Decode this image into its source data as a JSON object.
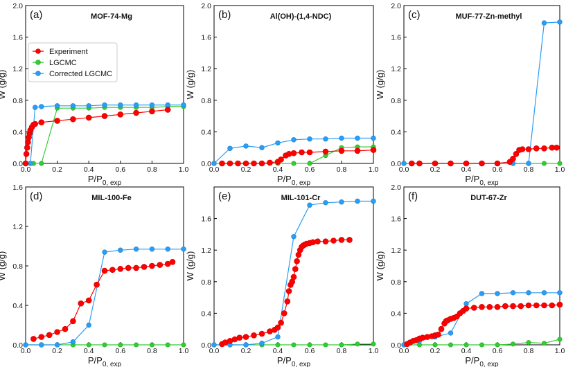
{
  "figure": {
    "type": "multi-panel isotherm figure"
  },
  "colors": {
    "experiment": "#ff0000",
    "lgcmc": "#33cc33",
    "corrected": "#2a9df4",
    "experiment_stroke": "#cc0000",
    "lgcmc_stroke": "#22aa22",
    "corrected_stroke": "#1a7fd0"
  },
  "chart_data": [
    {
      "panel": "(a)",
      "type": "line",
      "title": "MOF-74-Mg",
      "xlabel": "P/P",
      "xlabel_sub": "0, exp",
      "ylabel": "W (g/g)",
      "xlim": [
        0,
        1.0
      ],
      "ylim": [
        0,
        2.0
      ],
      "xticks": [
        "0.0",
        "0.2",
        "0.4",
        "0.6",
        "0.8",
        "1.0"
      ],
      "yticks": [
        "0.0",
        "0.4",
        "0.8",
        "1.2",
        "1.6",
        "2.0"
      ],
      "legend": [
        "Experiment",
        "LGCMC",
        "Corrected LGCMC"
      ],
      "series": [
        {
          "name": "Experiment",
          "x": [
            0.0,
            0.005,
            0.01,
            0.015,
            0.02,
            0.025,
            0.03,
            0.04,
            0.05,
            0.06,
            0.1,
            0.2,
            0.3,
            0.4,
            0.5,
            0.6,
            0.7,
            0.8,
            0.9
          ],
          "y": [
            0.0,
            0.12,
            0.2,
            0.27,
            0.33,
            0.38,
            0.42,
            0.46,
            0.49,
            0.5,
            0.52,
            0.54,
            0.56,
            0.58,
            0.6,
            0.62,
            0.64,
            0.66,
            0.68
          ]
        },
        {
          "name": "LGCMC",
          "x": [
            0.0,
            0.05,
            0.1,
            0.2,
            0.3,
            0.4,
            0.5,
            0.6,
            0.7,
            0.8,
            0.9,
            1.0
          ],
          "y": [
            0.0,
            0.0,
            0.0,
            0.7,
            0.7,
            0.7,
            0.71,
            0.71,
            0.71,
            0.71,
            0.72,
            0.72
          ]
        },
        {
          "name": "Corrected LGCMC",
          "x": [
            0.0,
            0.03,
            0.06,
            0.1,
            0.2,
            0.3,
            0.4,
            0.5,
            0.6,
            0.7,
            0.8,
            0.9,
            1.0
          ],
          "y": [
            0.0,
            0.0,
            0.71,
            0.72,
            0.73,
            0.73,
            0.73,
            0.74,
            0.74,
            0.74,
            0.74,
            0.74,
            0.74
          ]
        }
      ]
    },
    {
      "panel": "(b)",
      "type": "line",
      "title": "Al(OH)-(1,4-NDC)",
      "xlabel": "P/P",
      "xlabel_sub": "0, exp",
      "ylabel": "W (g/g)",
      "xlim": [
        0,
        1.0
      ],
      "ylim": [
        0,
        2.0
      ],
      "xticks": [
        "0.0",
        "0.2",
        "0.4",
        "0.6",
        "0.8",
        "1.0"
      ],
      "yticks": [
        "0.0",
        "0.4",
        "0.8",
        "1.2",
        "1.6",
        "2.0"
      ],
      "series": [
        {
          "name": "Experiment",
          "x": [
            0.05,
            0.1,
            0.15,
            0.2,
            0.25,
            0.3,
            0.35,
            0.4,
            0.42,
            0.45,
            0.47,
            0.5,
            0.55,
            0.6,
            0.7,
            0.8,
            0.9,
            1.0
          ],
          "y": [
            0.0,
            0.0,
            0.0,
            0.0,
            0.0,
            0.0,
            0.01,
            0.02,
            0.05,
            0.1,
            0.12,
            0.13,
            0.14,
            0.14,
            0.15,
            0.16,
            0.16,
            0.17
          ]
        },
        {
          "name": "LGCMC",
          "x": [
            0.0,
            0.1,
            0.2,
            0.3,
            0.4,
            0.5,
            0.6,
            0.7,
            0.8,
            0.9,
            1.0
          ],
          "y": [
            0.0,
            0.0,
            0.0,
            0.0,
            0.0,
            0.0,
            0.0,
            0.1,
            0.2,
            0.21,
            0.21
          ]
        },
        {
          "name": "Corrected LGCMC",
          "x": [
            0.0,
            0.1,
            0.2,
            0.3,
            0.4,
            0.5,
            0.6,
            0.7,
            0.8,
            0.9,
            1.0
          ],
          "y": [
            0.0,
            0.19,
            0.22,
            0.2,
            0.26,
            0.3,
            0.31,
            0.31,
            0.32,
            0.32,
            0.32
          ]
        }
      ]
    },
    {
      "panel": "(c)",
      "type": "line",
      "title": "MUF-77-Zn-methyl",
      "xlabel": "P/P",
      "xlabel_sub": "0, exp",
      "ylabel": "W (g/g)",
      "xlim": [
        0,
        1.0
      ],
      "ylim": [
        0,
        2.0
      ],
      "xticks": [
        "0.0",
        "0.2",
        "0.4",
        "0.6",
        "0.8",
        "1.0"
      ],
      "yticks": [
        "0.0",
        "0.4",
        "0.8",
        "1.2",
        "1.6",
        "2.0"
      ],
      "series": [
        {
          "name": "Experiment",
          "x": [
            0.05,
            0.1,
            0.2,
            0.3,
            0.4,
            0.5,
            0.6,
            0.68,
            0.7,
            0.72,
            0.74,
            0.76,
            0.8,
            0.85,
            0.9,
            0.95,
            0.98
          ],
          "y": [
            0.0,
            0.0,
            0.0,
            0.0,
            0.0,
            0.0,
            0.0,
            0.02,
            0.06,
            0.12,
            0.17,
            0.18,
            0.18,
            0.19,
            0.19,
            0.2,
            0.2
          ]
        },
        {
          "name": "LGCMC",
          "x": [
            0.0,
            0.1,
            0.2,
            0.3,
            0.4,
            0.5,
            0.6,
            0.7,
            0.8,
            0.9,
            1.0
          ],
          "y": [
            0.0,
            0.0,
            0.0,
            0.0,
            0.0,
            0.0,
            0.0,
            0.0,
            0.0,
            0.0,
            0.0
          ]
        },
        {
          "name": "Corrected LGCMC",
          "x": [
            0.0,
            0.1,
            0.2,
            0.3,
            0.4,
            0.5,
            0.6,
            0.7,
            0.8,
            0.9,
            1.0
          ],
          "y": [
            0.0,
            0.0,
            0.0,
            0.0,
            0.0,
            0.0,
            0.0,
            0.0,
            0.0,
            1.78,
            1.79
          ]
        }
      ]
    },
    {
      "panel": "(d)",
      "type": "line",
      "title": "MIL-100-Fe",
      "xlabel": "P/P",
      "xlabel_sub": "0, exp",
      "ylabel": "W (g/g)",
      "xlim": [
        0,
        1.0
      ],
      "ylim": [
        0,
        1.6
      ],
      "xticks": [
        "0.0",
        "0.2",
        "0.4",
        "0.6",
        "0.8",
        "1.0"
      ],
      "yticks": [
        "0.0",
        "0.4",
        "0.8",
        "1.2",
        "1.6"
      ],
      "series": [
        {
          "name": "Experiment",
          "x": [
            0.05,
            0.1,
            0.15,
            0.2,
            0.25,
            0.3,
            0.35,
            0.4,
            0.45,
            0.5,
            0.55,
            0.6,
            0.65,
            0.7,
            0.75,
            0.8,
            0.85,
            0.9,
            0.93
          ],
          "y": [
            0.06,
            0.08,
            0.1,
            0.13,
            0.16,
            0.24,
            0.42,
            0.45,
            0.61,
            0.75,
            0.76,
            0.77,
            0.78,
            0.78,
            0.79,
            0.8,
            0.81,
            0.82,
            0.84
          ]
        },
        {
          "name": "LGCMC",
          "x": [
            0.0,
            0.1,
            0.2,
            0.3,
            0.4,
            0.5,
            0.6,
            0.7,
            0.8,
            0.9,
            1.0
          ],
          "y": [
            0.0,
            0.0,
            0.0,
            0.0,
            0.0,
            0.0,
            0.0,
            0.0,
            0.0,
            0.0,
            0.0
          ]
        },
        {
          "name": "Corrected LGCMC",
          "x": [
            0.0,
            0.1,
            0.2,
            0.3,
            0.4,
            0.5,
            0.6,
            0.7,
            0.8,
            0.9,
            1.0
          ],
          "y": [
            0.0,
            0.0,
            0.0,
            0.03,
            0.2,
            0.94,
            0.96,
            0.97,
            0.97,
            0.97,
            0.97
          ]
        }
      ]
    },
    {
      "panel": "(e)",
      "type": "line",
      "title": "MIL-101-Cr",
      "xlabel": "P/P",
      "xlabel_sub": "0, exp",
      "ylabel": "W (g/g)",
      "xlim": [
        0,
        1.0
      ],
      "ylim": [
        0,
        2.0
      ],
      "xticks": [
        "0.0",
        "0.2",
        "0.4",
        "0.6",
        "0.8",
        "1.0"
      ],
      "yticks": [
        "0.0",
        "0.4",
        "0.8",
        "1.2",
        "1.6"
      ],
      "series": [
        {
          "name": "Experiment",
          "x": [
            0.05,
            0.07,
            0.1,
            0.13,
            0.16,
            0.2,
            0.25,
            0.3,
            0.35,
            0.38,
            0.4,
            0.42,
            0.44,
            0.46,
            0.47,
            0.48,
            0.49,
            0.5,
            0.51,
            0.52,
            0.53,
            0.54,
            0.55,
            0.56,
            0.57,
            0.58,
            0.6,
            0.62,
            0.65,
            0.7,
            0.75,
            0.8,
            0.85
          ],
          "y": [
            0.01,
            0.03,
            0.05,
            0.07,
            0.09,
            0.1,
            0.12,
            0.14,
            0.17,
            0.19,
            0.22,
            0.28,
            0.4,
            0.55,
            0.68,
            0.76,
            0.8,
            0.86,
            0.96,
            1.06,
            1.14,
            1.2,
            1.24,
            1.26,
            1.27,
            1.28,
            1.29,
            1.3,
            1.31,
            1.31,
            1.32,
            1.33,
            1.33
          ]
        },
        {
          "name": "LGCMC",
          "x": [
            0.0,
            0.1,
            0.2,
            0.3,
            0.4,
            0.5,
            0.6,
            0.7,
            0.8,
            0.9,
            1.0
          ],
          "y": [
            0.0,
            0.0,
            0.0,
            0.0,
            0.0,
            0.0,
            0.0,
            0.0,
            0.0,
            0.01,
            0.01
          ]
        },
        {
          "name": "Corrected LGCMC",
          "x": [
            0.0,
            0.1,
            0.2,
            0.3,
            0.4,
            0.5,
            0.6,
            0.7,
            0.8,
            0.9,
            1.0
          ],
          "y": [
            0.0,
            0.0,
            0.0,
            0.02,
            0.1,
            1.37,
            1.77,
            1.8,
            1.81,
            1.82,
            1.82
          ]
        }
      ]
    },
    {
      "panel": "(f)",
      "type": "line",
      "title": "DUT-67-Zr",
      "xlabel": "P/P",
      "xlabel_sub": "0, exp",
      "ylabel": "W (g/g)",
      "xlim": [
        0,
        1.0
      ],
      "ylim": [
        0,
        2.0
      ],
      "xticks": [
        "0.0",
        "0.2",
        "0.4",
        "0.6",
        "0.8",
        "1.0"
      ],
      "yticks": [
        "0.0",
        "0.4",
        "0.8",
        "1.2",
        "1.6",
        "2.0"
      ],
      "series": [
        {
          "name": "Experiment",
          "x": [
            0.02,
            0.04,
            0.06,
            0.08,
            0.1,
            0.12,
            0.15,
            0.18,
            0.2,
            0.22,
            0.24,
            0.26,
            0.27,
            0.28,
            0.3,
            0.32,
            0.34,
            0.36,
            0.38,
            0.4,
            0.45,
            0.5,
            0.55,
            0.6,
            0.65,
            0.7,
            0.75,
            0.8,
            0.85,
            0.9,
            0.95,
            1.0
          ],
          "y": [
            0.01,
            0.03,
            0.05,
            0.06,
            0.08,
            0.09,
            0.1,
            0.11,
            0.12,
            0.13,
            0.2,
            0.27,
            0.3,
            0.31,
            0.33,
            0.34,
            0.36,
            0.4,
            0.43,
            0.46,
            0.47,
            0.48,
            0.48,
            0.48,
            0.49,
            0.49,
            0.49,
            0.5,
            0.5,
            0.5,
            0.5,
            0.51
          ]
        },
        {
          "name": "LGCMC",
          "x": [
            0.0,
            0.1,
            0.2,
            0.3,
            0.4,
            0.5,
            0.6,
            0.7,
            0.8,
            0.9,
            1.0
          ],
          "y": [
            0.0,
            0.0,
            0.0,
            0.0,
            0.0,
            0.0,
            0.0,
            0.01,
            0.03,
            0.02,
            0.07
          ]
        },
        {
          "name": "Corrected LGCMC",
          "x": [
            0.0,
            0.1,
            0.2,
            0.3,
            0.4,
            0.5,
            0.6,
            0.7,
            0.8,
            0.9,
            1.0
          ],
          "y": [
            0.0,
            0.05,
            0.1,
            0.15,
            0.52,
            0.65,
            0.65,
            0.66,
            0.66,
            0.66,
            0.66
          ]
        }
      ]
    }
  ]
}
